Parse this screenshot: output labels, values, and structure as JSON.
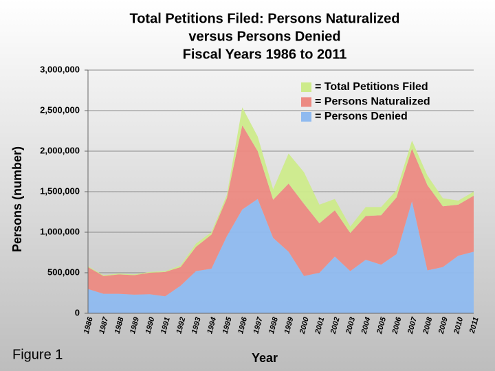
{
  "chart_data": {
    "type": "stacked-area",
    "title": [
      "Total Petitions Filed: Persons Naturalized",
      "versus Persons Denied",
      "Fiscal Years 1986 to 2011"
    ],
    "x_label": "Year",
    "y_label": "Persons (number)",
    "caption": "Figure 1",
    "x": [
      1986,
      1987,
      1988,
      1989,
      1990,
      1991,
      1992,
      1993,
      1994,
      1995,
      1996,
      1997,
      1998,
      1999,
      2000,
      2001,
      2002,
      2003,
      2004,
      2005,
      2006,
      2007,
      2008,
      2009,
      2010,
      2011
    ],
    "xlim": [
      1986,
      2011
    ],
    "ylim": [
      0,
      3000000
    ],
    "yticks": [
      0,
      {
        "value": 500000,
        "label": "500,000"
      },
      {
        "value": 1000000,
        "label": "1,000,000"
      },
      {
        "value": 1500000,
        "label": "1,500,000"
      },
      {
        "value": 2000000,
        "label": "2,000,000"
      },
      {
        "value": 2500000,
        "label": "2,500,000"
      },
      {
        "value": 3000000,
        "label": "3,000,000"
      }
    ],
    "grid": true,
    "series": [
      {
        "name": "= Persons Denied",
        "color": "#8fbaf0",
        "values": [
          300000,
          240000,
          240000,
          230000,
          235000,
          210000,
          340000,
          520000,
          550000,
          950000,
          1280000,
          1410000,
          930000,
          760000,
          460000,
          500000,
          700000,
          520000,
          660000,
          600000,
          730000,
          1380000,
          530000,
          570000,
          710000,
          760000
        ]
      },
      {
        "name": "= Persons Naturalized",
        "color": "#ec8a82",
        "values": [
          270000,
          220000,
          240000,
          240000,
          265000,
          300000,
          230000,
          300000,
          420000,
          470000,
          1040000,
          590000,
          470000,
          840000,
          890000,
          610000,
          570000,
          470000,
          540000,
          610000,
          700000,
          650000,
          1050000,
          750000,
          630000,
          690000
        ]
      },
      {
        "name": "= Total Petitions Filed",
        "color": "#cdeb8b",
        "values": [
          10000,
          10000,
          10000,
          10000,
          10000,
          10000,
          20000,
          40000,
          30000,
          40000,
          220000,
          180000,
          130000,
          370000,
          390000,
          230000,
          140000,
          80000,
          110000,
          100000,
          90000,
          100000,
          120000,
          100000,
          50000,
          50000
        ]
      }
    ]
  }
}
